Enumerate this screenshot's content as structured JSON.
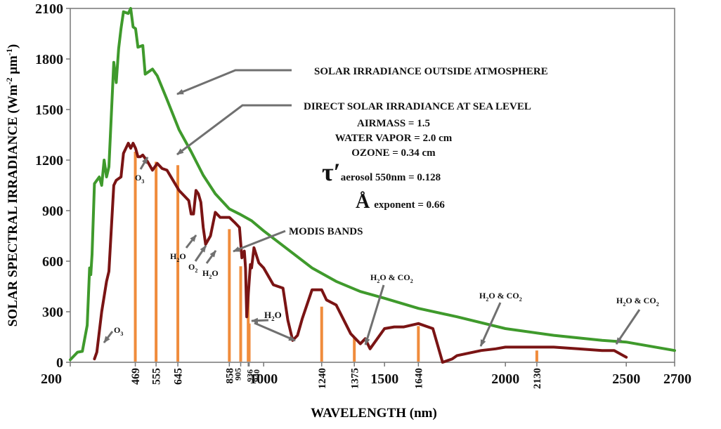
{
  "chart_data": {
    "type": "line",
    "xlabel": "WAVELENGTH (nm)",
    "ylabel": "SOLAR SPECTRAL IRRADIANCE (Wm",
    "ylabel_sup1": "-2",
    "ylabel_mid": " μm",
    "ylabel_sup2": "-1",
    "ylabel_end": ")",
    "xlim": [
      200,
      2700
    ],
    "ylim": [
      0,
      2100
    ],
    "x_ticks_primary": [
      "200",
      "1000",
      "1500",
      "2000",
      "2500",
      "2700"
    ],
    "x_ticks_primary_values": [
      200,
      1000,
      1500,
      2000,
      2500,
      2700
    ],
    "x_ticks_band": [
      "469",
      "555",
      "645",
      "858",
      "905",
      "936",
      "940",
      "1240",
      "1375",
      "1640",
      "2130"
    ],
    "x_ticks_band_values": [
      469,
      555,
      645,
      858,
      905,
      936,
      940,
      1240,
      1375,
      1640,
      2130
    ],
    "y_ticks": [
      "0",
      "300",
      "600",
      "900",
      "1200",
      "1500",
      "1800",
      "2100"
    ],
    "y_ticks_values": [
      0,
      300,
      600,
      900,
      1200,
      1500,
      1800,
      2100
    ],
    "series": [
      {
        "name": "SOLAR IRRADIANCE OUTSIDE ATMOSPHERE",
        "color": "#3f9a2c",
        "x": [
          200,
          230,
          250,
          270,
          280,
          285,
          290,
          300,
          320,
          330,
          340,
          350,
          360,
          380,
          390,
          400,
          410,
          420,
          440,
          450,
          460,
          470,
          480,
          500,
          510,
          520,
          540,
          560,
          580,
          600,
          650,
          700,
          750,
          800,
          858,
          900,
          950,
          1000,
          1100,
          1200,
          1300,
          1400,
          1500,
          1640,
          1800,
          2000,
          2200,
          2400,
          2500,
          2700
        ],
        "y": [
          15,
          60,
          65,
          220,
          560,
          520,
          640,
          1060,
          1100,
          1050,
          1200,
          1100,
          1160,
          1780,
          1660,
          1860,
          1980,
          2080,
          2070,
          2100,
          1990,
          1980,
          1870,
          1880,
          1710,
          1720,
          1740,
          1700,
          1630,
          1560,
          1380,
          1250,
          1110,
          1000,
          910,
          880,
          840,
          780,
          670,
          560,
          480,
          420,
          380,
          320,
          270,
          200,
          160,
          130,
          120,
          70
        ]
      },
      {
        "name": "DIRECT SOLAR IRRADIANCE AT SEA LEVEL",
        "color": "#7a1414",
        "x": [
          300,
          310,
          330,
          350,
          360,
          380,
          390,
          400,
          410,
          420,
          440,
          450,
          460,
          470,
          480,
          490,
          500,
          520,
          540,
          560,
          580,
          600,
          650,
          690,
          700,
          710,
          720,
          730,
          740,
          750,
          760,
          780,
          800,
          820,
          858,
          880,
          900,
          910,
          920,
          925,
          930,
          940,
          945,
          950,
          960,
          980,
          1000,
          1040,
          1060,
          1080,
          1100,
          1120,
          1140,
          1160,
          1200,
          1240,
          1260,
          1300,
          1360,
          1400,
          1420,
          1440,
          1500,
          1540,
          1580,
          1640,
          1700,
          1720,
          1740,
          1780,
          1800,
          1900,
          1960,
          2000,
          2100,
          2150,
          2200,
          2300,
          2400,
          2450,
          2500
        ],
        "y": [
          20,
          60,
          300,
          480,
          540,
          1050,
          1080,
          1090,
          1100,
          1240,
          1300,
          1270,
          1300,
          1270,
          1220,
          1220,
          1230,
          1190,
          1140,
          1180,
          1150,
          1140,
          1020,
          960,
          880,
          880,
          1020,
          1000,
          950,
          800,
          700,
          750,
          890,
          860,
          860,
          830,
          800,
          620,
          660,
          560,
          270,
          480,
          580,
          560,
          680,
          590,
          560,
          460,
          450,
          440,
          250,
          130,
          160,
          260,
          430,
          430,
          370,
          340,
          170,
          110,
          140,
          80,
          200,
          210,
          210,
          230,
          200,
          100,
          0,
          20,
          40,
          70,
          80,
          90,
          90,
          90,
          90,
          80,
          70,
          70,
          30
        ]
      }
    ],
    "modis_bands": {
      "label": "MODIS BANDS",
      "color": "#f08c3c",
      "x": [
        469,
        555,
        645,
        858,
        905,
        936,
        940,
        1240,
        1375,
        1640,
        2130
      ],
      "y": [
        1250,
        1190,
        1170,
        790,
        570,
        410,
        230,
        330,
        150,
        215,
        70
      ]
    },
    "annotations": {
      "outside": "SOLAR IRRADIANCE OUTSIDE ATMOSPHERE",
      "direct": "DIRECT SOLAR IRRADIANCE AT SEA LEVEL",
      "airmass": "AIRMASS = 1.5",
      "water_vapor": "WATER VAPOR = 2.0 cm",
      "ozone": "OZONE = 0.34 cm",
      "tau_symbol": "τ′",
      "tau_text": "aerosol 550nm = 0.128",
      "angstrom_symbol": "Å",
      "angstrom_text": "exponent = 0.66",
      "modis": "MODIS BANDS",
      "o3_low": "O",
      "o3_low_sub": "3",
      "o3_high": "O",
      "o3_high_sub": "3",
      "h2o_1": "H",
      "h2o_1_sub": "2",
      "h2o_1_end": "O",
      "o2": "O",
      "o2_sub": "2",
      "h2o_2": "H",
      "h2o_2_sub": "2",
      "h2o_2_end": "O",
      "h2o_3": "H",
      "h2o_3_sub": "2",
      "h2o_3_end": "O",
      "h2o_co2_1": "H",
      "h2o_co2_1_sub": "2",
      "h2o_co2_1_end": "O & CO",
      "h2o_co2_1_sub2": "2",
      "h2o_co2_2": "H",
      "h2o_co2_2_sub": "2",
      "h2o_co2_2_end": "O & CO",
      "h2o_co2_2_sub2": "2",
      "h2o_co2_3": "H",
      "h2o_co2_3_sub": "2",
      "h2o_co2_3_end": "O & CO",
      "h2o_co2_3_sub2": "2"
    }
  }
}
